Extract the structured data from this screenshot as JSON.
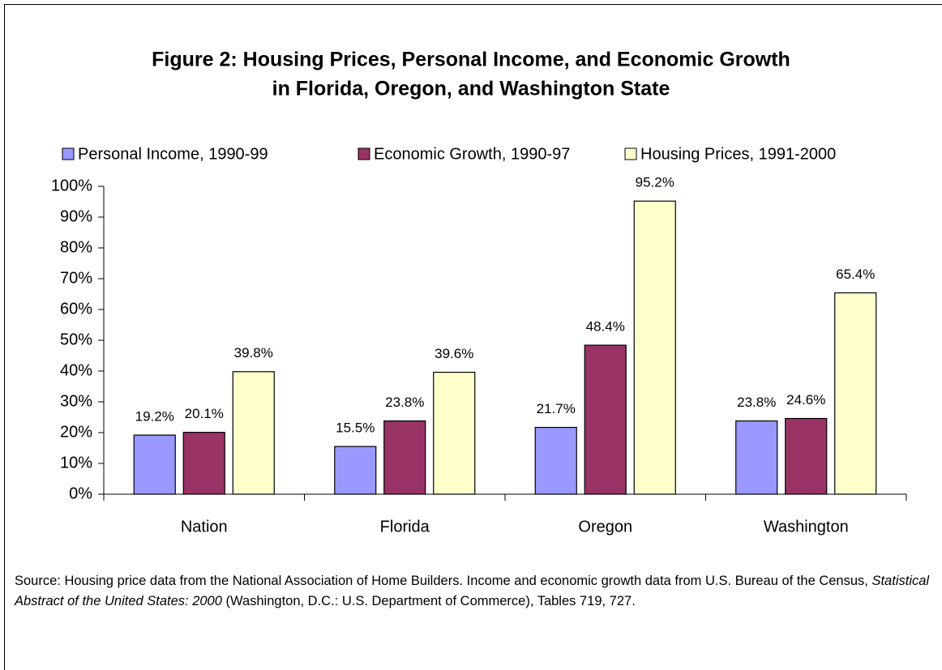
{
  "chart_data": {
    "type": "bar",
    "title": [
      "Figure 2: Housing Prices, Personal Income, and Economic Growth",
      "in Florida, Oregon, and Washington State"
    ],
    "categories": [
      "Nation",
      "Florida",
      "Oregon",
      "Washington"
    ],
    "series": [
      {
        "name": "Personal Income, 1990-99",
        "color": "#9999ff",
        "values": [
          19.2,
          15.5,
          21.7,
          23.8
        ],
        "value_labels": [
          "19.2%",
          "15.5%",
          "21.7%",
          "23.8%"
        ]
      },
      {
        "name": "Economic Growth, 1990-97",
        "color": "#993366",
        "values": [
          20.1,
          23.8,
          48.4,
          24.6
        ],
        "value_labels": [
          "20.1%",
          "23.8%",
          "48.4%",
          "24.6%"
        ]
      },
      {
        "name": "Housing Prices, 1991-2000",
        "color": "#ffffcc",
        "values": [
          39.8,
          39.6,
          95.2,
          65.4
        ],
        "value_labels": [
          "39.8%",
          "39.6%",
          "95.2%",
          "65.4%"
        ]
      }
    ],
    "ylim": [
      0,
      100
    ],
    "yticks": [
      {
        "value": 0,
        "label": "0%"
      },
      {
        "value": 10,
        "label": "10%"
      },
      {
        "value": 20,
        "label": "20%"
      },
      {
        "value": 30,
        "label": "30%"
      },
      {
        "value": 40,
        "label": "40%"
      },
      {
        "value": 50,
        "label": "50%"
      },
      {
        "value": 60,
        "label": "60%"
      },
      {
        "value": 70,
        "label": "70%"
      },
      {
        "value": 80,
        "label": "80%"
      },
      {
        "value": 90,
        "label": "90%"
      },
      {
        "value": 100,
        "label": "100%"
      }
    ],
    "legend": "top",
    "source": [
      "Source: Housing price data from the National Association of Home Builders. Income and economic growth data from U.S. Bureau of the Census, ",
      "Statistical Abstract of the United States: 2000",
      " (Washington, D.C.: U.S. Department of Commerce), Tables 719, 727."
    ]
  }
}
